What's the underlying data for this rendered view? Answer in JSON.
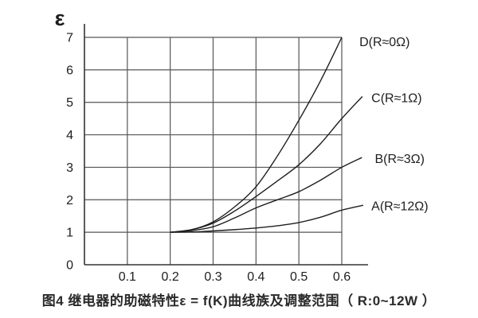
{
  "figure": {
    "caption": "图4 继电器的助磁特性ε = f(K)曲线族及调整范围（ R:0~12W ）"
  },
  "chart_data": {
    "type": "line",
    "title": "",
    "xlabel": "",
    "ylabel": "ε",
    "xlim": [
      0,
      0.66
    ],
    "ylim": [
      0,
      7
    ],
    "grid": true,
    "x_ticks": [
      0.1,
      0.2,
      0.3,
      0.4,
      0.5,
      0.6
    ],
    "x_tick_labels": [
      "0.1",
      "0.2",
      "0.3",
      "0.4",
      "0.5",
      "0.6"
    ],
    "y_ticks": [
      0,
      1,
      2,
      3,
      4,
      5,
      6,
      7
    ],
    "y_tick_labels": [
      "0",
      "1",
      "2",
      "3",
      "4",
      "5",
      "6",
      "7"
    ],
    "legend_position": "right-of-curve-tips",
    "grid_color": "#555555",
    "line_color": "#1f1f1f",
    "series": [
      {
        "name": "D",
        "label": "D(R≈0Ω)",
        "label_anchor": [
          0.641,
          6.87
        ],
        "points": [
          [
            0.2,
            1.0
          ],
          [
            0.25,
            1.08
          ],
          [
            0.3,
            1.32
          ],
          [
            0.35,
            1.78
          ],
          [
            0.4,
            2.4
          ],
          [
            0.45,
            3.35
          ],
          [
            0.5,
            4.45
          ],
          [
            0.55,
            5.65
          ],
          [
            0.6,
            7.0
          ]
        ]
      },
      {
        "name": "C",
        "label": "C(R≈1Ω)",
        "label_anchor": [
          0.669,
          5.14
        ],
        "points": [
          [
            0.2,
            1.0
          ],
          [
            0.25,
            1.08
          ],
          [
            0.3,
            1.28
          ],
          [
            0.35,
            1.65
          ],
          [
            0.4,
            2.1
          ],
          [
            0.45,
            2.58
          ],
          [
            0.5,
            3.08
          ],
          [
            0.55,
            3.72
          ],
          [
            0.6,
            4.5
          ],
          [
            0.648,
            5.18
          ]
        ]
      },
      {
        "name": "B",
        "label": "B(R≈3Ω)",
        "label_anchor": [
          0.677,
          3.27
        ],
        "points": [
          [
            0.2,
            1.0
          ],
          [
            0.25,
            1.05
          ],
          [
            0.3,
            1.17
          ],
          [
            0.35,
            1.44
          ],
          [
            0.4,
            1.75
          ],
          [
            0.45,
            2.0
          ],
          [
            0.5,
            2.25
          ],
          [
            0.55,
            2.6
          ],
          [
            0.6,
            3.0
          ],
          [
            0.647,
            3.3
          ]
        ]
      },
      {
        "name": "A",
        "label": "A(R≈12Ω)",
        "label_anchor": [
          0.669,
          1.81
        ],
        "points": [
          [
            0.2,
            1.0
          ],
          [
            0.25,
            1.01
          ],
          [
            0.3,
            1.04
          ],
          [
            0.35,
            1.08
          ],
          [
            0.4,
            1.13
          ],
          [
            0.45,
            1.2
          ],
          [
            0.5,
            1.3
          ],
          [
            0.55,
            1.46
          ],
          [
            0.6,
            1.68
          ],
          [
            0.65,
            1.83
          ]
        ]
      }
    ]
  }
}
